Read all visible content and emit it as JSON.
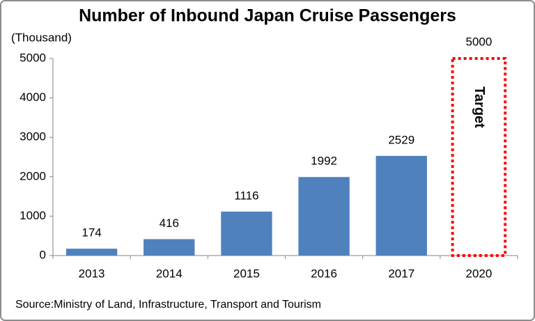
{
  "chart_data": {
    "type": "bar",
    "title": "Number of Inbound Japan Cruise Passengers",
    "unit_label": "(Thousand)",
    "categories": [
      "2013",
      "2014",
      "2015",
      "2016",
      "2017",
      "2020"
    ],
    "values": [
      174,
      416,
      1116,
      1992,
      2529,
      null
    ],
    "color": "#4f81bd",
    "target": {
      "label": "Target",
      "value": 5000,
      "color": "#ff0000"
    },
    "ylim": [
      0,
      5000
    ],
    "yticks": [
      0,
      1000,
      2000,
      3000,
      4000,
      5000
    ],
    "grid": false,
    "source": "Source:Ministry of Land, Infrastructure, Transport and Tourism"
  }
}
